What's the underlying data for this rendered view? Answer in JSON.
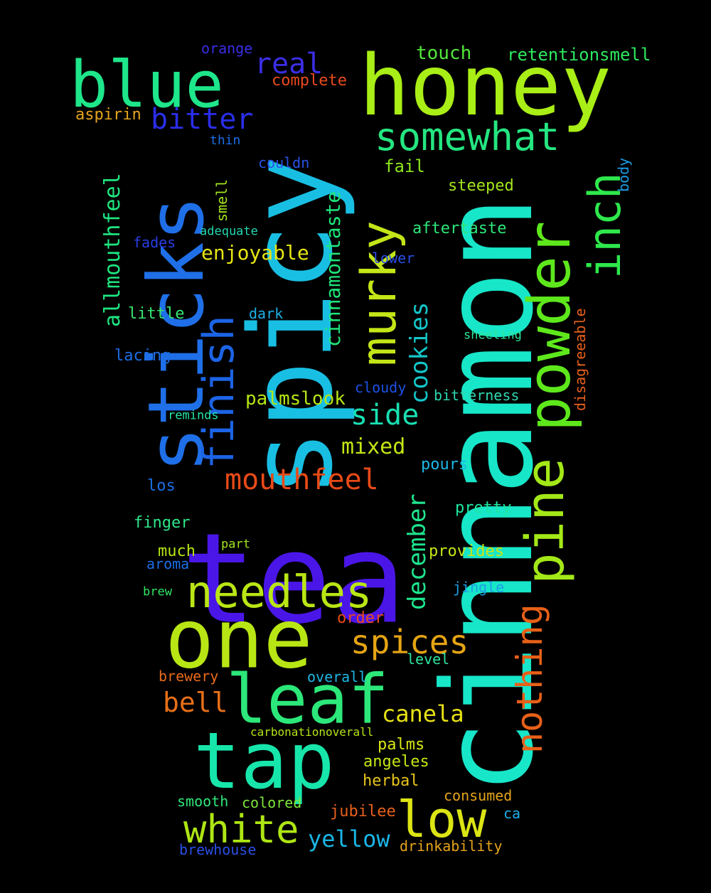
{
  "words": [
    {
      "text": "cinnamon",
      "color": "#17e6c9"
    },
    {
      "text": "tea",
      "color": "#4a16e8"
    },
    {
      "text": "spicy",
      "color": "#19bfe3"
    },
    {
      "text": "honey",
      "color": "#a9ee16"
    },
    {
      "text": "sticks",
      "color": "#1f6fe8"
    },
    {
      "text": "one",
      "color": "#b8e614"
    },
    {
      "text": "tap",
      "color": "#17e6ab"
    },
    {
      "text": "leaf",
      "color": "#2ce87a"
    },
    {
      "text": "blue",
      "color": "#1ee68a"
    },
    {
      "text": "powder",
      "color": "#5ee81c"
    },
    {
      "text": "pine",
      "color": "#a3e817"
    },
    {
      "text": "low",
      "color": "#dce514"
    },
    {
      "text": "murky",
      "color": "#c4e517"
    },
    {
      "text": "inch",
      "color": "#2ee84c"
    },
    {
      "text": "needles",
      "color": "#b9e614"
    },
    {
      "text": "finish",
      "color": "#1c64e6"
    },
    {
      "text": "white",
      "color": "#aee614"
    },
    {
      "text": "nothing",
      "color": "#e86018"
    },
    {
      "text": "somewhat",
      "color": "#24e680"
    },
    {
      "text": "spices",
      "color": "#e6a414"
    },
    {
      "text": "mouthfeel",
      "color": "#e84a18"
    },
    {
      "text": "bitter",
      "color": "#2a2ee8"
    },
    {
      "text": "real",
      "color": "#3b2ee6"
    },
    {
      "text": "side",
      "color": "#19e0b2"
    },
    {
      "text": "bell",
      "color": "#e87018"
    },
    {
      "text": "cookies",
      "color": "#14c6c9"
    },
    {
      "text": "december",
      "color": "#1ee68f"
    },
    {
      "text": "yellow",
      "color": "#1bb6e6"
    },
    {
      "text": "canela",
      "color": "#e6e114"
    },
    {
      "text": "cinnamontaste",
      "color": "#1ee67b"
    },
    {
      "text": "allmouthfeel",
      "color": "#1ee67f"
    },
    {
      "text": "mixed",
      "color": "#c6e614"
    },
    {
      "text": "enjoyable",
      "color": "#e6e414"
    },
    {
      "text": "palmslook",
      "color": "#b6e614"
    },
    {
      "text": "touch",
      "color": "#52e63a"
    },
    {
      "text": "retentionsmell",
      "color": "#2ee860"
    },
    {
      "text": "complete",
      "color": "#e84a1c"
    },
    {
      "text": "orange",
      "color": "#3a2ee6"
    },
    {
      "text": "aspirin",
      "color": "#e6a41c"
    },
    {
      "text": "fail",
      "color": "#8de61c"
    },
    {
      "text": "steeped",
      "color": "#a4e61c"
    },
    {
      "text": "aftertaste",
      "color": "#2ee67a"
    },
    {
      "text": "disagreeable",
      "color": "#e8601c"
    },
    {
      "text": "body",
      "color": "#1c9ee6"
    },
    {
      "text": "thin",
      "color": "#1c6ee6"
    },
    {
      "text": "couldn",
      "color": "#2a52e6"
    },
    {
      "text": "smell",
      "color": "#a4e61c"
    },
    {
      "text": "adequate",
      "color": "#24d8b0"
    },
    {
      "text": "fades",
      "color": "#2a3ee6"
    },
    {
      "text": "lower",
      "color": "#2a4ee6"
    },
    {
      "text": "little",
      "color": "#36e672"
    },
    {
      "text": "dark",
      "color": "#1caee6"
    },
    {
      "text": "sheeting",
      "color": "#2ee69a"
    },
    {
      "text": "lacing",
      "color": "#1c6ee6"
    },
    {
      "text": "cloudy",
      "color": "#1c52e6"
    },
    {
      "text": "bitterness",
      "color": "#2ed8b0"
    },
    {
      "text": "reminds",
      "color": "#24e6a4"
    },
    {
      "text": "pours",
      "color": "#1cb8e6"
    },
    {
      "text": "los",
      "color": "#1c6ee6"
    },
    {
      "text": "pretty",
      "color": "#1ee6a0"
    },
    {
      "text": "finger",
      "color": "#2ee68a"
    },
    {
      "text": "much",
      "color": "#b6e614"
    },
    {
      "text": "part",
      "color": "#a4e61c"
    },
    {
      "text": "provides",
      "color": "#c6e614"
    },
    {
      "text": "aroma",
      "color": "#1c6ee6"
    },
    {
      "text": "brew",
      "color": "#2ee662"
    },
    {
      "text": "jingle",
      "color": "#1c9ee6"
    },
    {
      "text": "order",
      "color": "#e84a1c"
    },
    {
      "text": "brewery",
      "color": "#e86a1c"
    },
    {
      "text": "overall",
      "color": "#1cb8e6"
    },
    {
      "text": "level",
      "color": "#2ee6a0"
    },
    {
      "text": "carbonationoverall",
      "color": "#b6e614"
    },
    {
      "text": "palms",
      "color": "#d8e614"
    },
    {
      "text": "angeles",
      "color": "#c6e614"
    },
    {
      "text": "herbal",
      "color": "#e6c41c"
    },
    {
      "text": "smooth",
      "color": "#2ee67a"
    },
    {
      "text": "colored",
      "color": "#7ee63a"
    },
    {
      "text": "jubilee",
      "color": "#e8601c"
    },
    {
      "text": "consumed",
      "color": "#e6a41c"
    },
    {
      "text": "ca",
      "color": "#1caee6"
    },
    {
      "text": "brewhouse",
      "color": "#2a4ee6"
    },
    {
      "text": "drinkability",
      "color": "#e6a41c"
    }
  ]
}
